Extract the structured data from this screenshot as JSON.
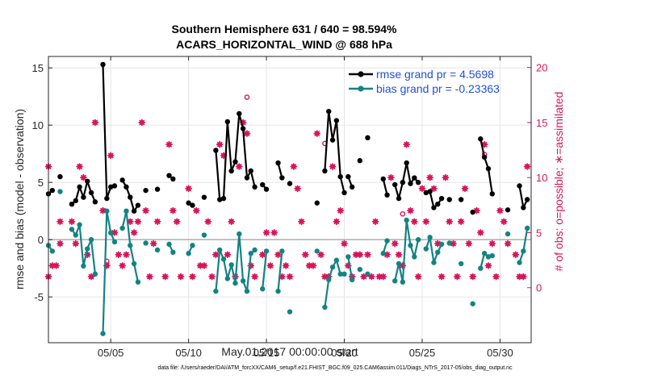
{
  "chart_data": {
    "type": "line",
    "title": "Southern Hemisphere 631 / 640 = 98.594%",
    "subtitle": "ACARS_HORIZONTAL_WIND @ 688 hPa",
    "xlabel": "May.01,2017 00:00:00 start",
    "ylabel": "rmse and bias (model - observation)",
    "ylabel_right": "# of obs: o=possible; ∗=assimilated",
    "xlim": [
      1,
      32
    ],
    "ylim": [
      -9,
      16
    ],
    "ylim_right": [
      -5,
      21
    ],
    "x_ticks": [
      5,
      10,
      15,
      20,
      25,
      30
    ],
    "x_tick_labels": [
      "05/05",
      "05/10",
      "05/15",
      "05/20",
      "05/25",
      "05/30"
    ],
    "y_ticks": [
      -5,
      0,
      5,
      10,
      15
    ],
    "y_tick_labels": [
      "-5",
      "0",
      "5",
      "10",
      "15"
    ],
    "y_ticks_right": [
      0,
      5,
      10,
      15,
      20
    ],
    "y_tick_labels_right": [
      "0",
      "5",
      "10",
      "15",
      "20"
    ],
    "grid": true,
    "zero_line": true,
    "legend_position": "top-right",
    "footer": "data file: /Users/raeder/DAI/ATM_forcXX/CAM6_setup/f.e21.FHIST_BGC.f09_025.CAM6assim.011/Diags_NTrS_2017-05/obs_diag_output.nc",
    "colors": {
      "rmse": "#000000",
      "bias": "#138383",
      "obs": "#d9155a",
      "legend_text": "#1f4fd6",
      "zero_line": "#b3b3b3"
    },
    "series": [
      {
        "name": "rmse grand pr = 4.5698",
        "color": "#000000",
        "segments": [
          [
            [
              1.0,
              4.0
            ],
            [
              1.25,
              4.3
            ]
          ],
          [
            [
              1.75,
              5.5
            ]
          ],
          [
            [
              2.5,
              3.1
            ],
            [
              2.75,
              3.4
            ],
            [
              3.0,
              4.6
            ],
            [
              3.25,
              3.7
            ],
            [
              3.5,
              5.1
            ],
            [
              3.75,
              4.1
            ],
            [
              4.0,
              3.3
            ]
          ],
          [
            [
              4.5,
              15.3
            ],
            [
              4.75,
              3.6
            ],
            [
              5.0,
              4.6
            ],
            [
              5.25,
              4.7
            ]
          ],
          [
            [
              5.75,
              5.2
            ],
            [
              6.0,
              4.6
            ],
            [
              6.25,
              3.7
            ],
            [
              6.5,
              2.5
            ],
            [
              6.75,
              3.0
            ]
          ],
          [
            [
              7.25,
              4.3
            ]
          ],
          [
            [
              8.0,
              4.4
            ]
          ],
          [
            [
              8.75,
              5.6
            ],
            [
              9.0,
              5.3
            ]
          ],
          [
            [
              10.0,
              3.2
            ],
            [
              10.25,
              3.0
            ]
          ],
          [
            [
              11.0,
              3.7
            ]
          ],
          [
            [
              11.75,
              7.8
            ],
            [
              12.0,
              3.5
            ],
            [
              12.25,
              3.6
            ],
            [
              12.5,
              10.3
            ],
            [
              12.75,
              6.0
            ],
            [
              13.0,
              6.8
            ],
            [
              13.25,
              11.0
            ],
            [
              13.5,
              9.7
            ],
            [
              13.75,
              5.4
            ],
            [
              14.0,
              6.0
            ],
            [
              14.25,
              4.6
            ]
          ],
          [
            [
              14.75,
              4.8
            ],
            [
              15.0,
              4.4
            ]
          ],
          [
            [
              15.75,
              6.7
            ],
            [
              16.0,
              5.4
            ]
          ],
          [
            [
              16.5,
              4.9
            ]
          ],
          [
            [
              18.25,
              3.2
            ]
          ],
          [
            [
              18.75,
              6.0
            ],
            [
              19.0,
              11.2
            ],
            [
              19.25,
              8.7
            ],
            [
              19.5,
              10.4
            ],
            [
              19.75,
              5.5
            ],
            [
              20.0,
              4.1
            ]
          ],
          [
            [
              20.25,
              5.5
            ],
            [
              20.5,
              4.6
            ]
          ],
          [
            [
              21.0,
              6.9
            ]
          ],
          [
            [
              21.5,
              8.9
            ]
          ],
          [
            [
              22.5,
              5.3
            ],
            [
              22.75,
              3.9
            ]
          ],
          [
            [
              23.25,
              4.8
            ],
            [
              23.5,
              3.6
            ],
            [
              23.75,
              5.0
            ],
            [
              24.0,
              6.7
            ],
            [
              24.25,
              4.9
            ],
            [
              24.5,
              5.4
            ],
            [
              24.75,
              5.0
            ]
          ],
          [
            [
              25.25,
              4.1
            ],
            [
              25.5,
              4.2
            ],
            [
              25.75,
              2.8
            ],
            [
              26.0,
              3.1
            ],
            [
              26.25,
              3.6
            ]
          ],
          [
            [
              26.75,
              3.5
            ]
          ],
          [
            [
              27.5,
              3.5
            ]
          ],
          [
            [
              28.25,
              2.4
            ]
          ],
          [
            [
              28.75,
              8.8
            ],
            [
              29.0,
              7.2
            ],
            [
              29.25,
              6.2
            ],
            [
              29.5,
              4.0
            ]
          ],
          [
            [
              30.5,
              2.6
            ]
          ],
          [
            [
              31.25,
              4.7
            ],
            [
              31.5,
              2.8
            ],
            [
              31.75,
              3.5
            ]
          ]
        ]
      },
      {
        "name": "bias grand pr = -0.23363",
        "color": "#138383",
        "segments": [
          [
            [
              1.0,
              -0.5
            ],
            [
              1.25,
              -1.0
            ]
          ],
          [
            [
              1.75,
              4.2
            ]
          ],
          [
            [
              2.5,
              0.9
            ],
            [
              2.75,
              0.4
            ],
            [
              3.0,
              1.3
            ],
            [
              3.25,
              -2.3
            ],
            [
              3.5,
              -0.8
            ],
            [
              3.75,
              0.0
            ],
            [
              4.0,
              -3.0
            ]
          ],
          [
            [
              4.5,
              -8.2
            ],
            [
              4.75,
              2.5
            ],
            [
              5.0,
              0.6
            ],
            [
              5.25,
              -0.2
            ]
          ],
          [
            [
              5.75,
              1.0
            ],
            [
              6.0,
              2.5
            ],
            [
              6.25,
              -0.5
            ],
            [
              6.5,
              -2.1
            ],
            [
              6.75,
              -3.7
            ]
          ],
          [
            [
              7.25,
              -0.3
            ]
          ],
          [
            [
              8.0,
              -0.9
            ]
          ],
          [
            [
              8.75,
              -0.4
            ],
            [
              9.0,
              -1.1
            ]
          ],
          [
            [
              10.0,
              -1.2
            ],
            [
              10.25,
              -0.5
            ]
          ],
          [
            [
              11.0,
              0.4
            ]
          ],
          [
            [
              11.75,
              -4.5
            ],
            [
              12.0,
              -0.9
            ],
            [
              12.25,
              -1.7
            ],
            [
              12.5,
              -3.4
            ],
            [
              12.75,
              -2.2
            ],
            [
              13.0,
              -3.8
            ],
            [
              13.25,
              0.5
            ],
            [
              13.5,
              -3.6
            ],
            [
              13.75,
              -4.5
            ],
            [
              14.0,
              -1.2
            ],
            [
              14.25,
              -0.9
            ]
          ],
          [
            [
              14.75,
              -4.3
            ],
            [
              15.0,
              -1.0
            ]
          ],
          [
            [
              15.75,
              -4.5
            ],
            [
              16.0,
              -1.0
            ]
          ],
          [
            [
              16.5,
              -6.3
            ]
          ],
          [
            [
              18.25,
              -1.0
            ]
          ],
          [
            [
              18.75,
              -5.9
            ],
            [
              19.0,
              -3.5
            ],
            [
              19.25,
              -2.4
            ],
            [
              19.5,
              -1.8
            ],
            [
              19.75,
              -3.0
            ],
            [
              20.0,
              -3.0
            ]
          ],
          [
            [
              20.25,
              -1.5
            ],
            [
              20.5,
              -3.5
            ]
          ],
          [
            [
              21.0,
              -2.6
            ]
          ],
          [
            [
              21.5,
              -3.0
            ]
          ],
          [
            [
              22.5,
              -1.2
            ],
            [
              22.75,
              -0.1
            ]
          ],
          [
            [
              23.25,
              -3.6
            ],
            [
              23.5,
              -2.1
            ],
            [
              23.75,
              -3.7
            ],
            [
              24.0,
              1.7
            ],
            [
              24.25,
              -0.5
            ],
            [
              24.5,
              -1.5
            ],
            [
              24.75,
              0.0
            ]
          ],
          [
            [
              25.25,
              -0.8
            ],
            [
              25.5,
              0.2
            ],
            [
              25.75,
              -2.0
            ],
            [
              26.0,
              -1.1
            ],
            [
              26.25,
              -0.4
            ]
          ],
          [
            [
              26.75,
              -0.3
            ]
          ],
          [
            [
              27.5,
              -2.1
            ]
          ],
          [
            [
              28.25,
              -5.6
            ]
          ],
          [
            [
              28.75,
              -2.5
            ],
            [
              29.0,
              -1.2
            ],
            [
              29.25,
              -1.5
            ],
            [
              29.5,
              -1.4
            ]
          ],
          [
            [
              30.5,
              0.5
            ]
          ],
          [
            [
              31.25,
              -2.0
            ],
            [
              31.5,
              -1.0
            ],
            [
              31.75,
              1.0
            ]
          ]
        ]
      }
    ],
    "obs_assimilated": [
      [
        1.0,
        11
      ],
      [
        1.0,
        1
      ],
      [
        1.25,
        2
      ],
      [
        1.5,
        2
      ],
      [
        1.75,
        4
      ],
      [
        1.75,
        6
      ],
      [
        2.5,
        6
      ],
      [
        2.75,
        4
      ],
      [
        3.0,
        11
      ],
      [
        3.25,
        10
      ],
      [
        3.5,
        3
      ],
      [
        3.75,
        1
      ],
      [
        4.0,
        15
      ],
      [
        4.5,
        7
      ],
      [
        4.75,
        2
      ],
      [
        5.0,
        12
      ],
      [
        5.25,
        5
      ],
      [
        5.5,
        3
      ],
      [
        5.75,
        2
      ],
      [
        6.0,
        3
      ],
      [
        6.25,
        6
      ],
      [
        6.5,
        5
      ],
      [
        6.75,
        6
      ],
      [
        7.0,
        15
      ],
      [
        7.25,
        7
      ],
      [
        7.5,
        1
      ],
      [
        7.75,
        4
      ],
      [
        8.0,
        6
      ],
      [
        8.5,
        1
      ],
      [
        8.75,
        13
      ],
      [
        9.0,
        7
      ],
      [
        9.25,
        6
      ],
      [
        9.5,
        1
      ],
      [
        10.0,
        9
      ],
      [
        10.25,
        1
      ],
      [
        10.5,
        7
      ],
      [
        10.75,
        2
      ],
      [
        11.0,
        2
      ],
      [
        11.25,
        6
      ],
      [
        11.5,
        1
      ],
      [
        11.75,
        3
      ],
      [
        12.0,
        13
      ],
      [
        12.25,
        12
      ],
      [
        12.5,
        3
      ],
      [
        12.75,
        6
      ],
      [
        13.0,
        1
      ],
      [
        13.25,
        11
      ],
      [
        13.5,
        15
      ],
      [
        13.75,
        14
      ],
      [
        14.0,
        2
      ],
      [
        14.25,
        1
      ],
      [
        14.75,
        3
      ],
      [
        15.0,
        5
      ],
      [
        15.25,
        2
      ],
      [
        15.5,
        5
      ],
      [
        15.75,
        3
      ],
      [
        16.0,
        1
      ],
      [
        16.25,
        2
      ],
      [
        16.5,
        1
      ],
      [
        16.75,
        11
      ],
      [
        17.0,
        9
      ],
      [
        17.25,
        6
      ],
      [
        17.5,
        3
      ],
      [
        17.75,
        2
      ],
      [
        18.0,
        2
      ],
      [
        18.25,
        14
      ],
      [
        18.5,
        3
      ],
      [
        18.75,
        1
      ],
      [
        19.0,
        1
      ],
      [
        19.25,
        11
      ],
      [
        19.5,
        6
      ],
      [
        19.75,
        7
      ],
      [
        20.0,
        4
      ],
      [
        20.25,
        2
      ],
      [
        20.5,
        1
      ],
      [
        20.75,
        3
      ],
      [
        21.0,
        3
      ],
      [
        21.25,
        1
      ],
      [
        21.5,
        3
      ],
      [
        21.75,
        1
      ],
      [
        22.0,
        6
      ],
      [
        22.25,
        1
      ],
      [
        22.5,
        1
      ],
      [
        22.75,
        3
      ],
      [
        23.0,
        10
      ],
      [
        23.25,
        4
      ],
      [
        23.5,
        3
      ],
      [
        23.75,
        2
      ],
      [
        24.0,
        13
      ],
      [
        24.25,
        7
      ],
      [
        24.5,
        6
      ],
      [
        24.75,
        1
      ],
      [
        25.0,
        9
      ],
      [
        25.25,
        6
      ],
      [
        25.5,
        10
      ],
      [
        25.75,
        9
      ],
      [
        26.0,
        4
      ],
      [
        26.25,
        1
      ],
      [
        26.5,
        10
      ],
      [
        26.75,
        6
      ],
      [
        27.0,
        4
      ],
      [
        27.25,
        1
      ],
      [
        27.5,
        6
      ],
      [
        27.75,
        9
      ],
      [
        28.0,
        4
      ],
      [
        28.25,
        1
      ],
      [
        28.5,
        7
      ],
      [
        28.75,
        5
      ],
      [
        29.0,
        13
      ],
      [
        29.25,
        2
      ],
      [
        29.5,
        4
      ],
      [
        29.75,
        1
      ],
      [
        30.0,
        7
      ],
      [
        30.25,
        6
      ],
      [
        30.5,
        4
      ],
      [
        31.0,
        3
      ],
      [
        31.25,
        1
      ],
      [
        31.5,
        1
      ],
      [
        31.75,
        11
      ]
    ],
    "obs_possible": [
      [
        4.75,
        2.4
      ],
      [
        13.75,
        17.3
      ],
      [
        18.75,
        13.1
      ],
      [
        23.75,
        6.7
      ],
      [
        29.0,
        12.1
      ]
    ]
  }
}
